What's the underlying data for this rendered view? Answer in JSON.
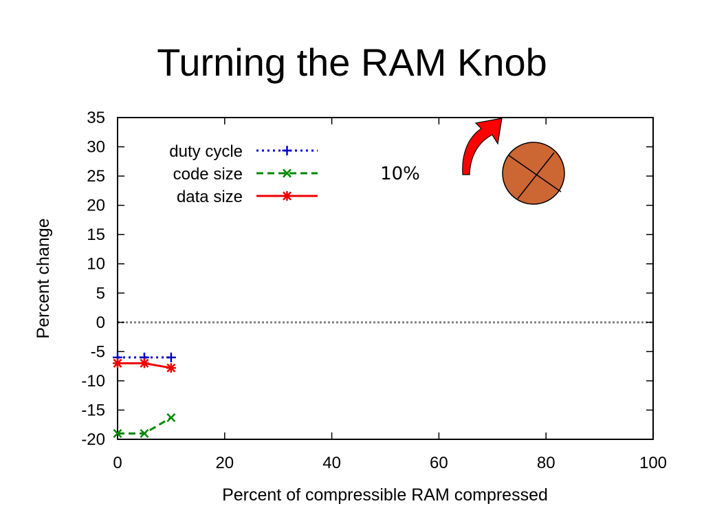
{
  "slide": {
    "title": "Turning the RAM Knob"
  },
  "chart_data": {
    "type": "line",
    "xlabel": "Percent of compressible RAM compressed",
    "ylabel": "Percent change",
    "xlim": [
      0,
      100
    ],
    "ylim": [
      -20,
      35
    ],
    "x_ticks": [
      0,
      20,
      40,
      60,
      80,
      100
    ],
    "y_ticks": [
      -20,
      -15,
      -10,
      -5,
      0,
      5,
      10,
      15,
      20,
      25,
      30,
      35
    ],
    "legend_position": "top-left",
    "reference_line": {
      "y": 0,
      "style": "dotted",
      "color": "#808080"
    },
    "series": [
      {
        "name": "duty cycle",
        "color": "#0000cc",
        "style": "dotted",
        "marker": "plus",
        "x": [
          0,
          5,
          10
        ],
        "y": [
          -6,
          -6,
          -6
        ]
      },
      {
        "name": "code size",
        "color": "#008800",
        "style": "dashed",
        "marker": "x",
        "x": [
          0,
          5,
          10
        ],
        "y": [
          -19,
          -19,
          -16.3
        ]
      },
      {
        "name": "data size",
        "color": "#ee0000",
        "style": "solid",
        "marker": "star",
        "x": [
          0,
          5,
          10
        ],
        "y": [
          -7,
          -7,
          -7.8
        ]
      }
    ],
    "annotations": [
      {
        "text": "10%"
      }
    ]
  },
  "decorations": {
    "knob": {
      "icon": "knob-icon",
      "fill": "#cc6633"
    },
    "arrow": {
      "icon": "curved-arrow-icon",
      "fill": "#ff0000"
    }
  }
}
